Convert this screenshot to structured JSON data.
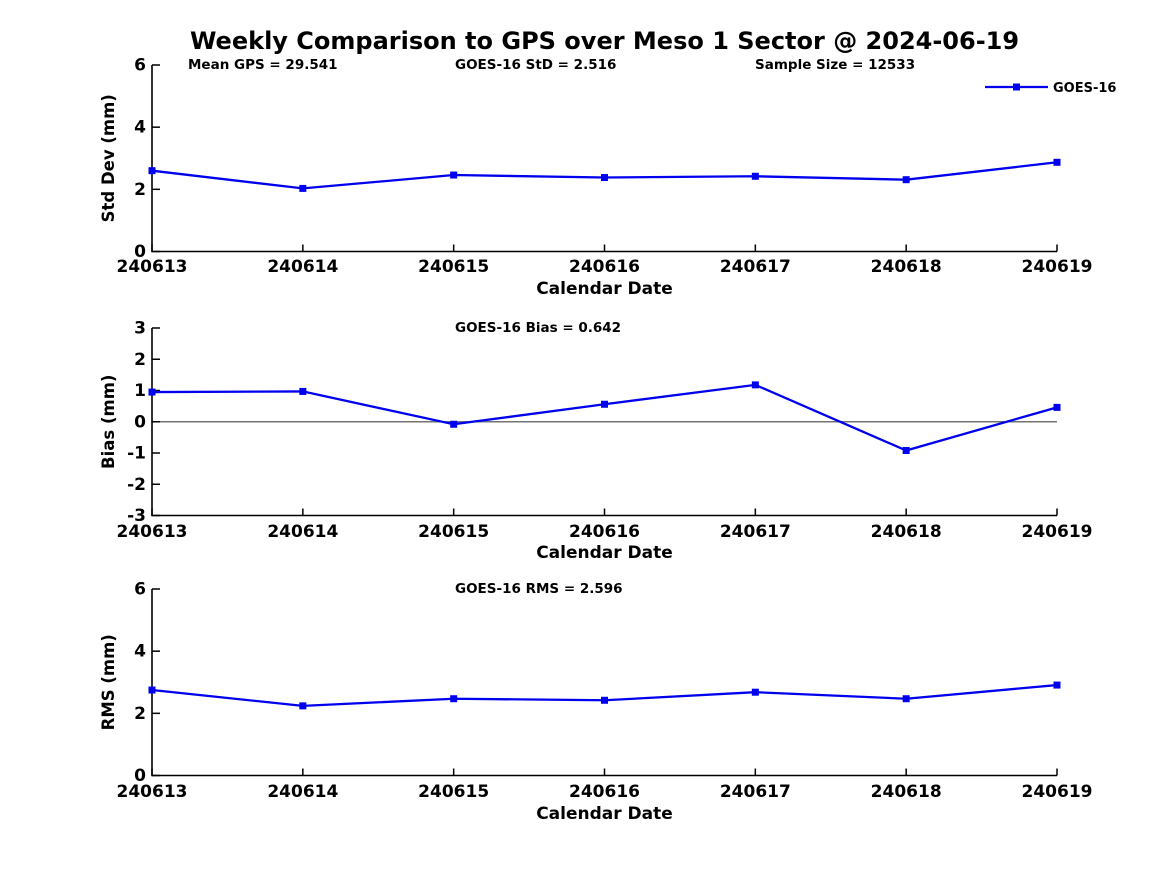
{
  "title": "Weekly Comparison to GPS over Meso 1 Sector @ 2024-06-19",
  "legend": {
    "label": "GOES-16"
  },
  "colors": {
    "series": "#0000EE",
    "zero_line": "#737373",
    "axis": "#000000",
    "background": "#FFFFFF"
  },
  "chart_data": [
    {
      "type": "line",
      "panel": "std-dev",
      "categories": [
        "240613",
        "240614",
        "240615",
        "240616",
        "240617",
        "240618",
        "240619"
      ],
      "series": [
        {
          "name": "GOES-16",
          "values": [
            2.6,
            2.03,
            2.46,
            2.38,
            2.42,
            2.31,
            2.87
          ]
        }
      ],
      "xlabel": "Calendar Date",
      "ylabel": "Std Dev (mm)",
      "ylim": [
        0,
        6
      ],
      "yticks": [
        0,
        2,
        4,
        6
      ],
      "grid": false,
      "marker": "square",
      "legend_position": "top-right",
      "annotations": [
        "Mean GPS = 29.541",
        "GOES-16 StD = 2.516",
        "Sample Size = 12533"
      ]
    },
    {
      "type": "line",
      "panel": "bias",
      "categories": [
        "240613",
        "240614",
        "240615",
        "240616",
        "240617",
        "240618",
        "240619"
      ],
      "series": [
        {
          "name": "GOES-16",
          "values": [
            0.95,
            0.97,
            -0.08,
            0.56,
            1.18,
            -0.92,
            0.46
          ]
        }
      ],
      "xlabel": "Calendar Date",
      "ylabel": "Bias (mm)",
      "ylim": [
        -3,
        3
      ],
      "yticks": [
        3,
        2,
        1,
        0,
        -1,
        -2,
        -3
      ],
      "zero_line": true,
      "grid": false,
      "marker": "square",
      "annotations": [
        "GOES-16 Bias  = 0.642"
      ]
    },
    {
      "type": "line",
      "panel": "rms",
      "categories": [
        "240613",
        "240614",
        "240615",
        "240616",
        "240617",
        "240618",
        "240619"
      ],
      "series": [
        {
          "name": "GOES-16",
          "values": [
            2.75,
            2.24,
            2.47,
            2.42,
            2.68,
            2.47,
            2.91
          ]
        }
      ],
      "xlabel": "Calendar Date",
      "ylabel": "RMS (mm)",
      "ylim": [
        0,
        6
      ],
      "yticks": [
        0,
        2,
        4,
        6
      ],
      "grid": false,
      "marker": "square",
      "annotations": [
        "GOES-16 RMS = 2.596"
      ]
    }
  ]
}
